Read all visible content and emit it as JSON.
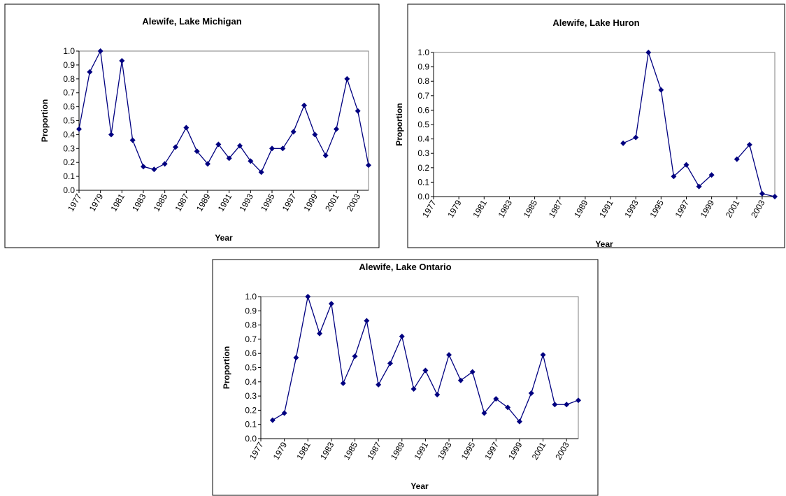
{
  "chart_data": [
    {
      "type": "line",
      "title": "Alewife, Lake Michigan",
      "x_label": "Year",
      "y_label": "Proportion",
      "color": "#000080",
      "x": [
        1977,
        1978,
        1979,
        1980,
        1981,
        1982,
        1983,
        1984,
        1985,
        1986,
        1987,
        1988,
        1989,
        1990,
        1991,
        1992,
        1993,
        1994,
        1995,
        1996,
        1997,
        1998,
        1999,
        2000,
        2001,
        2002,
        2003,
        2004
      ],
      "values": [
        0.44,
        0.85,
        1.0,
        0.4,
        0.93,
        0.36,
        0.17,
        0.15,
        0.19,
        0.31,
        0.45,
        0.28,
        0.19,
        0.33,
        0.23,
        0.32,
        0.21,
        0.13,
        0.3,
        0.3,
        0.42,
        0.61,
        0.4,
        0.25,
        0.44,
        0.8,
        0.57,
        0.18
      ],
      "xlim": [
        1977,
        2004
      ],
      "xticks": [
        1977,
        1979,
        1981,
        1983,
        1985,
        1987,
        1989,
        1991,
        1993,
        1995,
        1997,
        1999,
        2001,
        2003
      ],
      "ylim": [
        0,
        1
      ],
      "yticks": [
        {
          "value": 0,
          "label": "0.0"
        },
        0.1,
        0.2,
        0.3,
        0.4,
        0.5,
        0.6,
        0.7,
        0.8,
        0.9,
        {
          "value": 1,
          "label": "1.0"
        }
      ]
    },
    {
      "type": "line",
      "title": "Alewife, Lake Huron",
      "x_label": "Year",
      "y_label": "Proportion",
      "color": "#000080",
      "x": [
        1992,
        1993,
        1994,
        1995,
        1996,
        1997,
        1998,
        1999,
        2000,
        2001,
        2002,
        2003,
        2004
      ],
      "values": [
        0.37,
        0.41,
        1.0,
        0.74,
        0.14,
        0.22,
        0.07,
        0.15,
        null,
        0.26,
        0.36,
        0.02,
        0.0
      ],
      "xlim": [
        1977,
        2004
      ],
      "xticks": [
        1977,
        1979,
        1981,
        1983,
        1985,
        1987,
        1989,
        1991,
        1993,
        1995,
        1997,
        1999,
        2001,
        2003
      ],
      "ylim": [
        0,
        1
      ],
      "yticks": [
        {
          "value": 0,
          "label": "0.0"
        },
        0.1,
        0.2,
        0.3,
        0.4,
        0.5,
        0.6,
        0.7,
        0.8,
        0.9,
        {
          "value": 1,
          "label": "1.0"
        }
      ]
    },
    {
      "type": "line",
      "title": "Alewife, Lake Ontario",
      "x_label": "Year",
      "y_label": "Proportion",
      "color": "#000080",
      "x": [
        1978,
        1979,
        1980,
        1981,
        1982,
        1983,
        1984,
        1985,
        1986,
        1987,
        1988,
        1989,
        1990,
        1991,
        1992,
        1993,
        1994,
        1995,
        1996,
        1997,
        1998,
        1999,
        2000,
        2001,
        2002,
        2003,
        2004
      ],
      "values": [
        0.13,
        0.18,
        0.57,
        1.0,
        0.74,
        0.95,
        0.39,
        0.58,
        0.83,
        0.38,
        0.53,
        0.72,
        0.35,
        0.48,
        0.31,
        0.59,
        0.41,
        0.47,
        0.18,
        0.28,
        0.22,
        0.12,
        0.32,
        0.59,
        0.24,
        0.24,
        0.27
      ],
      "xlim": [
        1977,
        2004
      ],
      "xticks": [
        1977,
        1979,
        1981,
        1983,
        1985,
        1987,
        1989,
        1991,
        1993,
        1995,
        1997,
        1999,
        2001,
        2003
      ],
      "ylim": [
        0,
        1
      ],
      "yticks": [
        {
          "value": 0,
          "label": "0.0"
        },
        0.1,
        0.2,
        0.3,
        0.4,
        0.5,
        0.6,
        0.7,
        0.8,
        0.9,
        {
          "value": 1,
          "label": "1.0"
        }
      ]
    }
  ]
}
